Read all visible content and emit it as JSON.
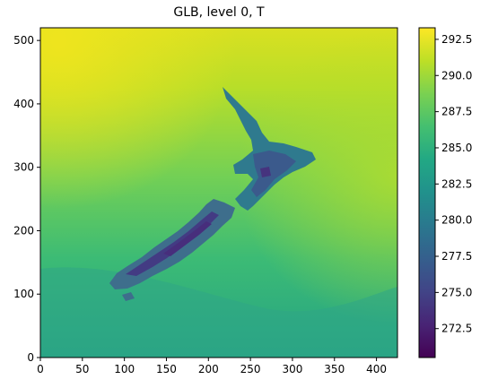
{
  "chart_data": {
    "type": "heatmap",
    "title": "GLB, level 0, T",
    "xlabel": "",
    "ylabel": "",
    "xlim": [
      0,
      425
    ],
    "ylim": [
      0,
      520
    ],
    "x_ticks": [
      0,
      50,
      100,
      150,
      200,
      250,
      300,
      350,
      400
    ],
    "y_ticks": [
      0,
      100,
      200,
      300,
      400,
      500
    ],
    "colormap": "viridis",
    "colorbar": {
      "min": 270.5,
      "max": 293.3,
      "ticks": [
        272.5,
        275.0,
        277.5,
        280.0,
        282.5,
        285.0,
        287.5,
        290.0,
        292.5
      ],
      "tick_labels": [
        "272.5",
        "275.0",
        "277.5",
        "280.0",
        "282.5",
        "285.0",
        "287.5",
        "290.0",
        "292.5"
      ]
    },
    "field_description_values": {
      "ocean_north": 291.5,
      "ocean_mid": 287.0,
      "ocean_south": 283.5,
      "land_lowland": 281.0,
      "land_mountains": 273.0
    },
    "grid": false
  }
}
